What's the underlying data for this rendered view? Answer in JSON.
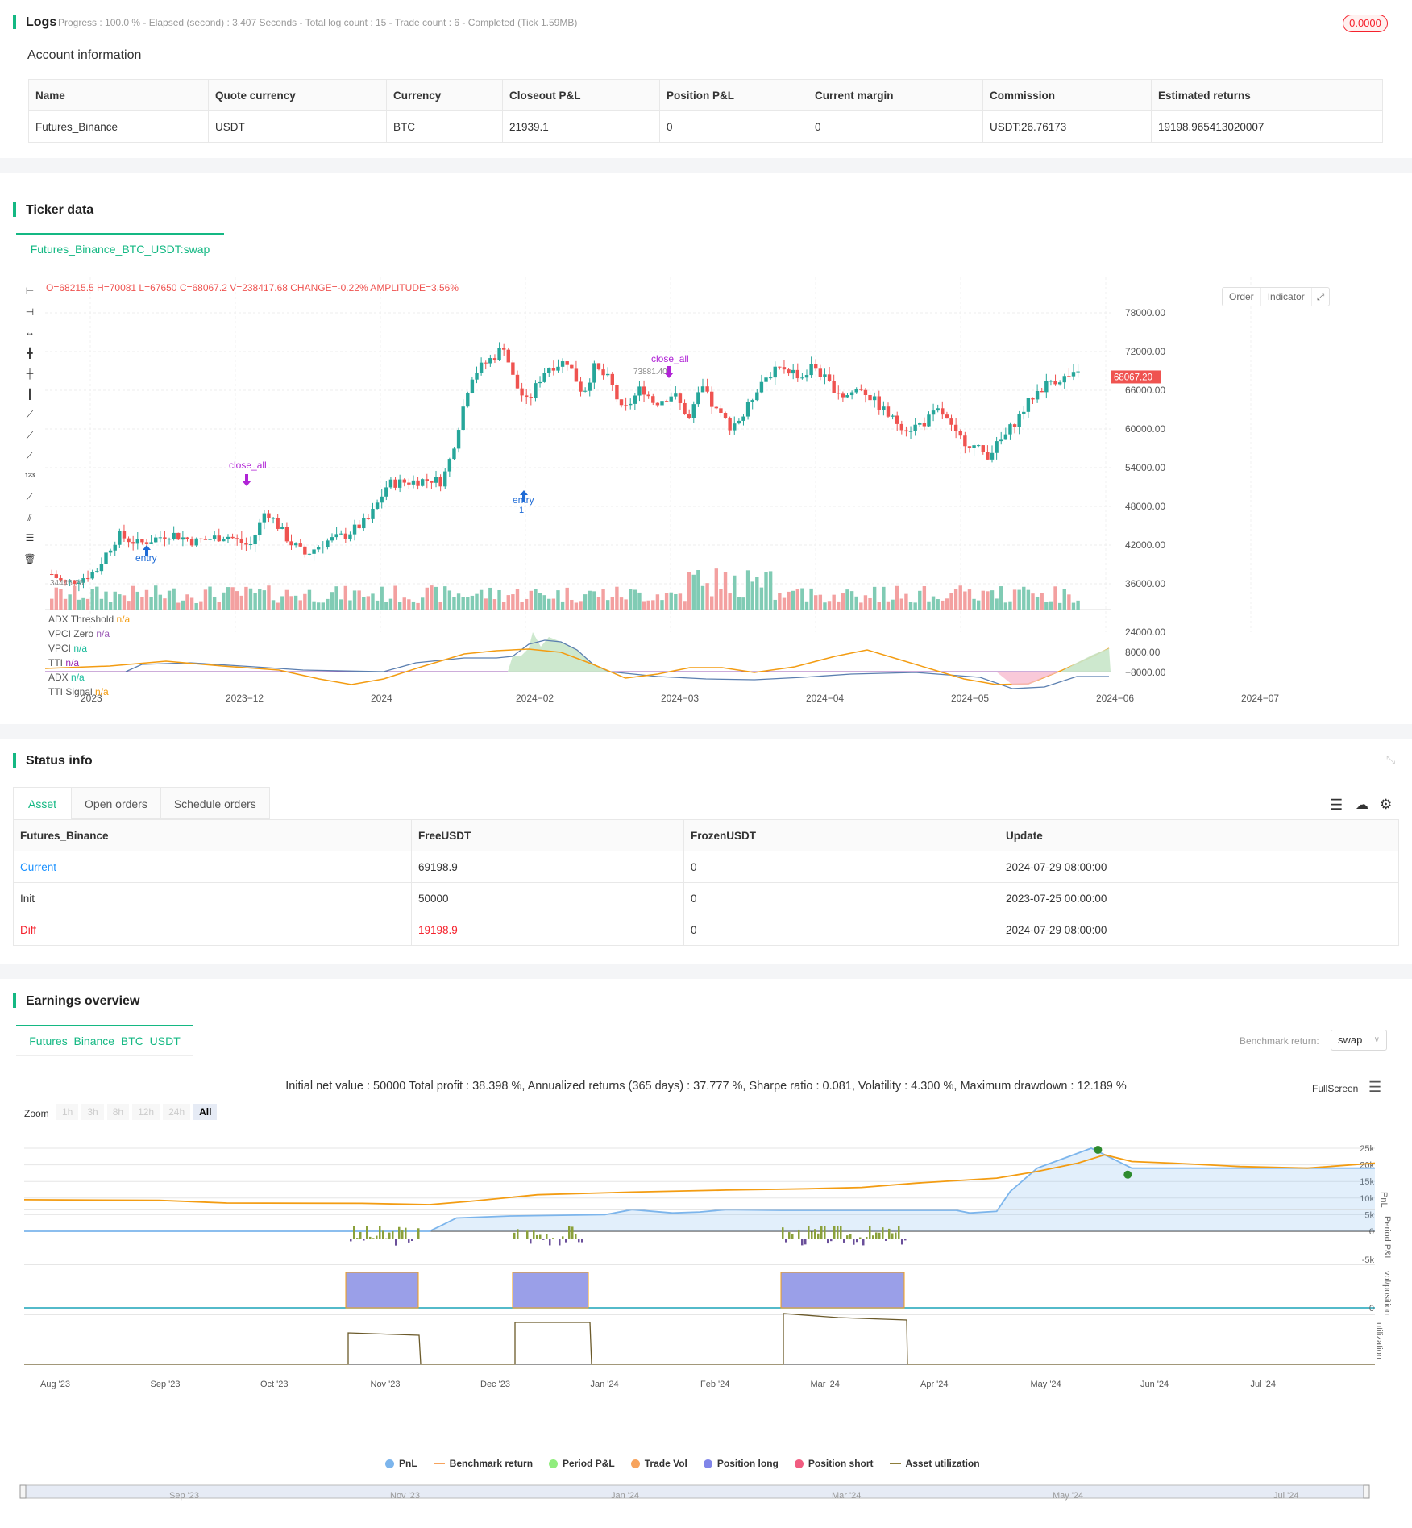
{
  "logs": {
    "title": "Logs",
    "progress": "Progress : 100.0 % - Elapsed (second) : 3.407  Seconds - Total log count : 15 - Trade count : 6 - Completed (Tick 1.59MB)",
    "badge": "0.0000"
  },
  "account": {
    "title": "Account information",
    "headers": [
      "Name",
      "Quote currency",
      "Currency",
      "Closeout P&L",
      "Position P&L",
      "Current margin",
      "Commission",
      "Estimated returns"
    ],
    "row": [
      "Futures_Binance",
      "USDT",
      "BTC",
      "21939.1",
      "0",
      "0",
      "USDT:26.76173",
      "19198.965413020007"
    ]
  },
  "ticker": {
    "title": "Ticker data",
    "tab": "Futures_Binance_BTC_USDT:swap",
    "ohlc": "O=68215.5 H=70081 L=67650 C=68067.2 V=238417.68 CHANGE=-0.22% AMPLITUDE=3.56%",
    "order_btn": "Order",
    "indicator_btn": "Indicator",
    "price_ticks": [
      "78000.00",
      "72000.00",
      "66000.00",
      "60000.00",
      "54000.00",
      "48000.00",
      "42000.00",
      "36000.00"
    ],
    "current_price": "68067.20",
    "high_label": "73881.40",
    "low_label": "34446.20",
    "ind_ticks": [
      "24000.00",
      "8000.00",
      "−8000.00"
    ],
    "x_ticks": [
      "2023",
      "2023−12",
      "2024",
      "2024−02",
      "2024−03",
      "2024−04",
      "2024−05",
      "2024−06",
      "2024−07"
    ],
    "legend": [
      {
        "name": "ADX Threshold",
        "val": "n/a",
        "color": "#f39c12"
      },
      {
        "name": "VPCI Zero",
        "val": "n/a",
        "color": "#9b59b6"
      },
      {
        "name": "VPCI",
        "val": "n/a",
        "color": "#1abc9c"
      },
      {
        "name": "TTI",
        "val": "n/a",
        "color": "#9b27b0"
      },
      {
        "name": "ADX",
        "val": "n/a",
        "color": "#1abc9c"
      },
      {
        "name": "TTI Signal",
        "val": "n/a",
        "color": "#f39c12"
      }
    ],
    "markers": {
      "entry1": "entry",
      "close1": "close_all",
      "entry2": "entry",
      "entry2_qty": "1",
      "close2": "close_all"
    },
    "colors": {
      "up": "#26a69a",
      "down": "#ef5350",
      "up_vol": "#80cbb4",
      "down_vol": "#f3a0a0"
    }
  },
  "status": {
    "title": "Status info",
    "tabs": [
      "Asset",
      "Open orders",
      "Schedule orders"
    ],
    "headers": [
      "Futures_Binance",
      "FreeUSDT",
      "FrozenUSDT",
      "Update"
    ],
    "rows": [
      [
        "Current",
        "69198.9",
        "0",
        "2024-07-29 08:00:00"
      ],
      [
        "Init",
        "50000",
        "0",
        "2023-07-25 00:00:00"
      ],
      [
        "Diff",
        "19198.9",
        "0",
        "2024-07-29 08:00:00"
      ]
    ]
  },
  "earnings": {
    "title": "Earnings overview",
    "tab": "Futures_Binance_BTC_USDT",
    "bench_label": "Benchmark return:",
    "bench_value": "swap",
    "summary": "Initial net value : 50000 Total profit : 38.398 %, Annualized returns (365 days) : 37.777 %, Sharpe ratio : 0.081, Volatility : 4.300 %, Maximum drawdown : 12.189 %",
    "fullscreen": "FullScreen",
    "zoom_label": "Zoom",
    "zoom": [
      "1h",
      "3h",
      "8h",
      "12h",
      "24h",
      "All"
    ],
    "pnl_ticks": [
      "25k",
      "20k",
      "15k",
      "10k",
      "5k",
      "0"
    ],
    "pnl_label": "PnL",
    "period_label": "Period P&L",
    "period_tick": "-5k",
    "vol_label": "vol/position",
    "vol_tick": "0",
    "util_label": "utilization",
    "x_ticks": [
      "Aug '23",
      "Sep '23",
      "Oct '23",
      "Nov '23",
      "Dec '23",
      "Jan '24",
      "Feb '24",
      "Mar '24",
      "Apr '24",
      "May '24",
      "Jun '24",
      "Jul '24"
    ],
    "nav_ticks": [
      "Sep '23",
      "Nov '23",
      "Jan '24",
      "Mar '24",
      "May '24",
      "Jul '24"
    ],
    "legend": [
      {
        "name": "PnL",
        "color": "#7cb5ec"
      },
      {
        "name": "Benchmark return",
        "color": "#f7a35c"
      },
      {
        "name": "Period P&L",
        "color": "#90ed7d"
      },
      {
        "name": "Trade Vol",
        "color": "#f7a35c"
      },
      {
        "name": "Position long",
        "color": "#8085e9"
      },
      {
        "name": "Position short",
        "color": "#f15c80"
      },
      {
        "name": "Asset utilization",
        "color": "#8d7d3a"
      }
    ]
  }
}
